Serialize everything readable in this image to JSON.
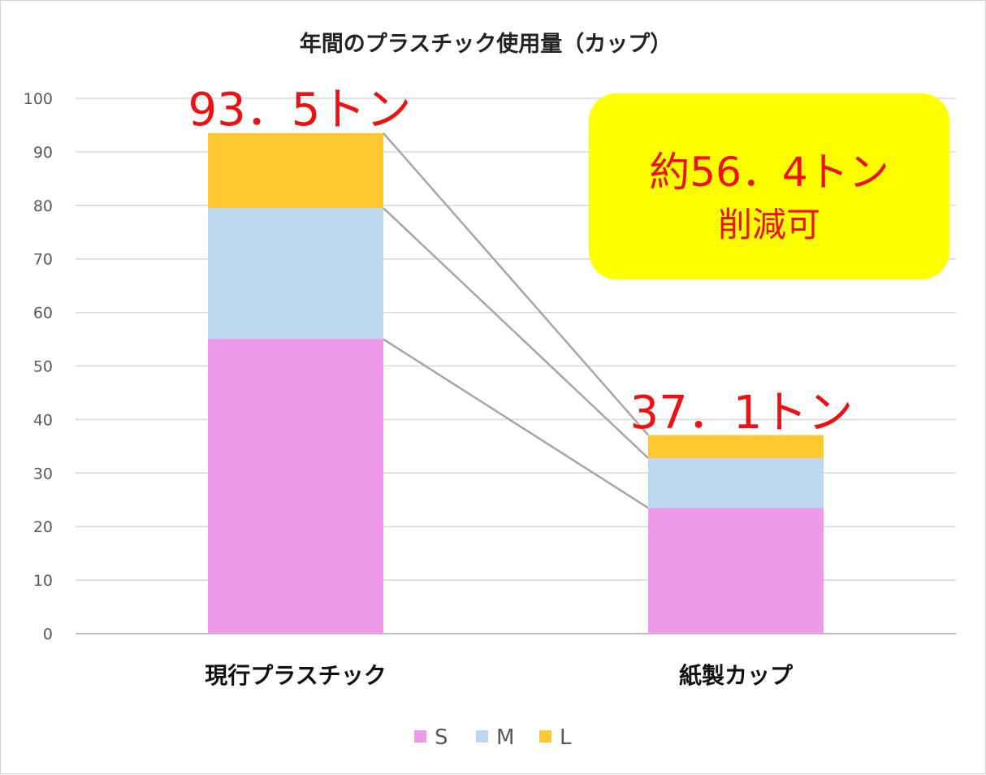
{
  "chart_data": {
    "type": "bar",
    "stacked": true,
    "title": "年間のプラスチック使用量（カップ）",
    "categories": [
      "現行プラスチック",
      "紙製カップ"
    ],
    "series": [
      {
        "name": "S",
        "color": "#ee9aea",
        "values": [
          55.0,
          23.5
        ]
      },
      {
        "name": "M",
        "color": "#bdd7ee",
        "values": [
          24.5,
          9.3
        ]
      },
      {
        "name": "L",
        "color": "#ffc832",
        "values": [
          14.0,
          4.3
        ]
      }
    ],
    "totals_labels": [
      "93．5トン",
      "37．1トン"
    ],
    "ylim": [
      0,
      100
    ],
    "yticks": [
      0,
      10,
      20,
      30,
      40,
      50,
      60,
      70,
      80,
      90,
      100
    ],
    "grid": true,
    "legend_position": "bottom",
    "connector_lines": true,
    "callout": {
      "line1": "約56．4トン",
      "line2": "削減可",
      "background": "#ffff00"
    }
  }
}
